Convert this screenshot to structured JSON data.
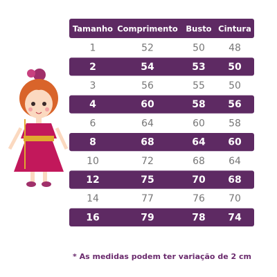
{
  "table": {
    "header": [
      "Tamanho",
      "Comprimento",
      "Busto",
      "Cintura"
    ],
    "rows": [
      [
        1,
        52,
        50,
        48
      ],
      [
        2,
        54,
        53,
        50
      ],
      [
        3,
        56,
        55,
        50
      ],
      [
        4,
        60,
        58,
        56
      ],
      [
        6,
        64,
        60,
        58
      ],
      [
        8,
        68,
        64,
        60
      ],
      [
        10,
        72,
        68,
        64
      ],
      [
        12,
        75,
        70,
        68
      ],
      [
        14,
        77,
        76,
        70
      ],
      [
        16,
        79,
        78,
        74
      ]
    ]
  },
  "footnote": "* As medidas podem ter variação de 2 cm"
}
